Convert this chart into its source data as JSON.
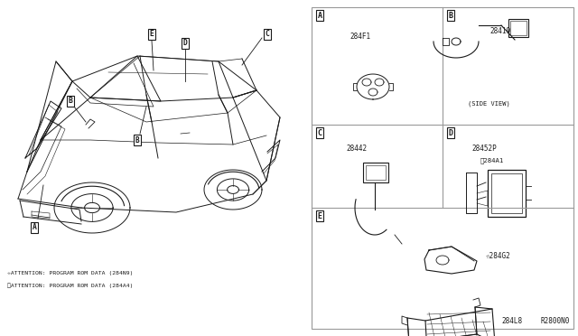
{
  "bg_color": "#ffffff",
  "line_color": "#1a1a1a",
  "grid_line_color": "#999999",
  "fig_width": 6.4,
  "fig_height": 3.72,
  "dpi": 100,
  "part_numbers": {
    "A": "284F1",
    "B": "28419",
    "C": "28442",
    "D_1": "28452P",
    "D_2": "※284A1",
    "E_1": "☆284G2",
    "E_2": "284L8"
  },
  "side_view_text": "(SIDE VIEW)",
  "attention_lines": [
    "☆ATTENTION: PROGRAM ROM DATA (284N9)",
    "※ATTENTION: PROGRAM ROM DATA (284A4)"
  ],
  "ref_code": "R2800N0"
}
